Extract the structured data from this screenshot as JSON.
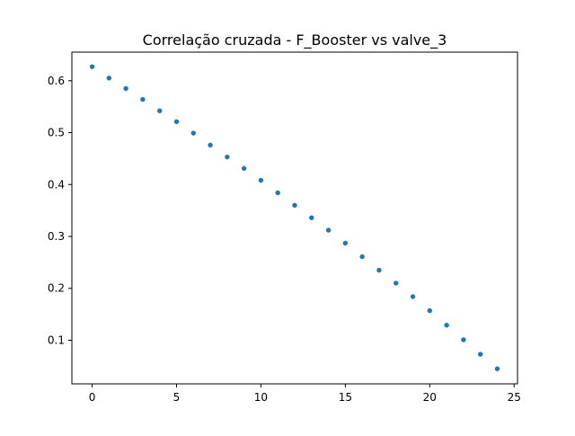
{
  "chart_data": {
    "type": "scatter",
    "title": "Correlação cruzada - F_Booster vs valve_3",
    "xlabel": "",
    "ylabel": "",
    "xlim": [
      -1.2,
      25.2
    ],
    "ylim": [
      0.016,
      0.655
    ],
    "xticks": [
      0,
      5,
      10,
      15,
      20,
      25
    ],
    "yticks": [
      0.1,
      0.2,
      0.3,
      0.4,
      0.5,
      0.6
    ],
    "xtick_labels": [
      "0",
      "5",
      "10",
      "15",
      "20",
      "25"
    ],
    "ytick_labels": [
      "0.1",
      "0.2",
      "0.3",
      "0.4",
      "0.5",
      "0.6"
    ],
    "grid": false,
    "marker_color": "#1f77b4",
    "series": [
      {
        "x": [
          0,
          1,
          2,
          3,
          4,
          5,
          6,
          7,
          8,
          9,
          10,
          11,
          12,
          13,
          14,
          15,
          16,
          17,
          18,
          19,
          20,
          21,
          22,
          23,
          24
        ],
        "y": [
          0.627,
          0.605,
          0.585,
          0.564,
          0.542,
          0.521,
          0.499,
          0.476,
          0.453,
          0.431,
          0.408,
          0.384,
          0.36,
          0.336,
          0.312,
          0.287,
          0.261,
          0.235,
          0.21,
          0.184,
          0.157,
          0.129,
          0.101,
          0.073,
          0.045
        ]
      }
    ]
  }
}
